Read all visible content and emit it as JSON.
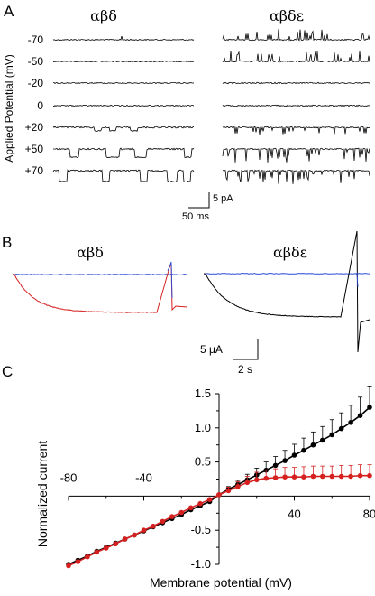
{
  "panel_a": {
    "label": "A",
    "col1_title": "αβδ",
    "col2_title": "αβδε",
    "y_axis_title": "Applied Potential (mV)",
    "potentials": [
      "-70",
      "-50",
      "-20",
      "0",
      "+20",
      "+50",
      "+70"
    ],
    "scalebar_y": "5 pA",
    "scalebar_x": "50 ms"
  },
  "panel_b": {
    "label": "B",
    "col1_title": "αβδ",
    "col2_title": "αβδε",
    "scalebar_y": "5 μA",
    "scalebar_x": "2 s",
    "colors": {
      "blue": "#2a4bd7",
      "red": "#d62020",
      "black": "#000000"
    }
  },
  "panel_c": {
    "label": "C",
    "ylabel": "Normalized current",
    "xlabel": "Membrane potential (mV)",
    "x_ticks": [
      "-80",
      "-40",
      "40",
      "80"
    ],
    "y_ticks": [
      "1.5",
      "1.0",
      "0.5",
      "-0.5",
      "-1.0"
    ]
  },
  "chart_data": {
    "type": "scatter",
    "xlabel": "Membrane potential (mV)",
    "ylabel": "Normalized current",
    "xlim": [
      -80,
      80
    ],
    "ylim": [
      -1.0,
      1.5
    ],
    "series": [
      {
        "color": "#000000",
        "x": [
          -80,
          -75,
          -70,
          -65,
          -60,
          -55,
          -50,
          -45,
          -40,
          -35,
          -30,
          -25,
          -20,
          -15,
          -10,
          -5,
          0,
          5,
          10,
          15,
          20,
          25,
          30,
          35,
          40,
          45,
          50,
          55,
          60,
          65,
          70,
          75,
          80
        ],
        "y": [
          -1.0,
          -0.94,
          -0.88,
          -0.81,
          -0.75,
          -0.69,
          -0.63,
          -0.57,
          -0.51,
          -0.45,
          -0.39,
          -0.33,
          -0.27,
          -0.2,
          -0.14,
          -0.08,
          0.02,
          0.1,
          0.17,
          0.24,
          0.31,
          0.38,
          0.45,
          0.52,
          0.6,
          0.67,
          0.75,
          0.82,
          0.9,
          0.99,
          1.08,
          1.18,
          1.3
        ],
        "err": [
          0,
          0,
          0,
          0,
          0,
          0,
          0,
          0,
          0,
          0,
          0,
          0,
          0,
          0,
          0,
          0,
          0.02,
          0.04,
          0.06,
          0.08,
          0.1,
          0.12,
          0.13,
          0.15,
          0.16,
          0.18,
          0.19,
          0.2,
          0.22,
          0.23,
          0.25,
          0.27,
          0.3
        ]
      },
      {
        "color": "#d62020",
        "x": [
          -80,
          -75,
          -70,
          -65,
          -60,
          -55,
          -50,
          -45,
          -40,
          -35,
          -30,
          -25,
          -20,
          -15,
          -10,
          -5,
          0,
          5,
          10,
          15,
          20,
          25,
          30,
          35,
          40,
          45,
          50,
          55,
          60,
          65,
          70,
          75,
          80
        ],
        "y": [
          -1.02,
          -0.96,
          -0.89,
          -0.82,
          -0.76,
          -0.7,
          -0.63,
          -0.57,
          -0.5,
          -0.44,
          -0.37,
          -0.3,
          -0.24,
          -0.17,
          -0.11,
          -0.05,
          0.02,
          0.08,
          0.14,
          0.2,
          0.24,
          0.26,
          0.27,
          0.28,
          0.28,
          0.28,
          0.29,
          0.29,
          0.29,
          0.29,
          0.29,
          0.3,
          0.3
        ],
        "err": [
          0,
          0,
          0,
          0,
          0,
          0,
          0,
          0,
          0,
          0,
          0,
          0,
          0,
          0,
          0,
          0,
          0.02,
          0.05,
          0.07,
          0.09,
          0.11,
          0.12,
          0.13,
          0.14,
          0.14,
          0.15,
          0.15,
          0.15,
          0.15,
          0.16,
          0.16,
          0.16,
          0.16
        ]
      }
    ]
  }
}
